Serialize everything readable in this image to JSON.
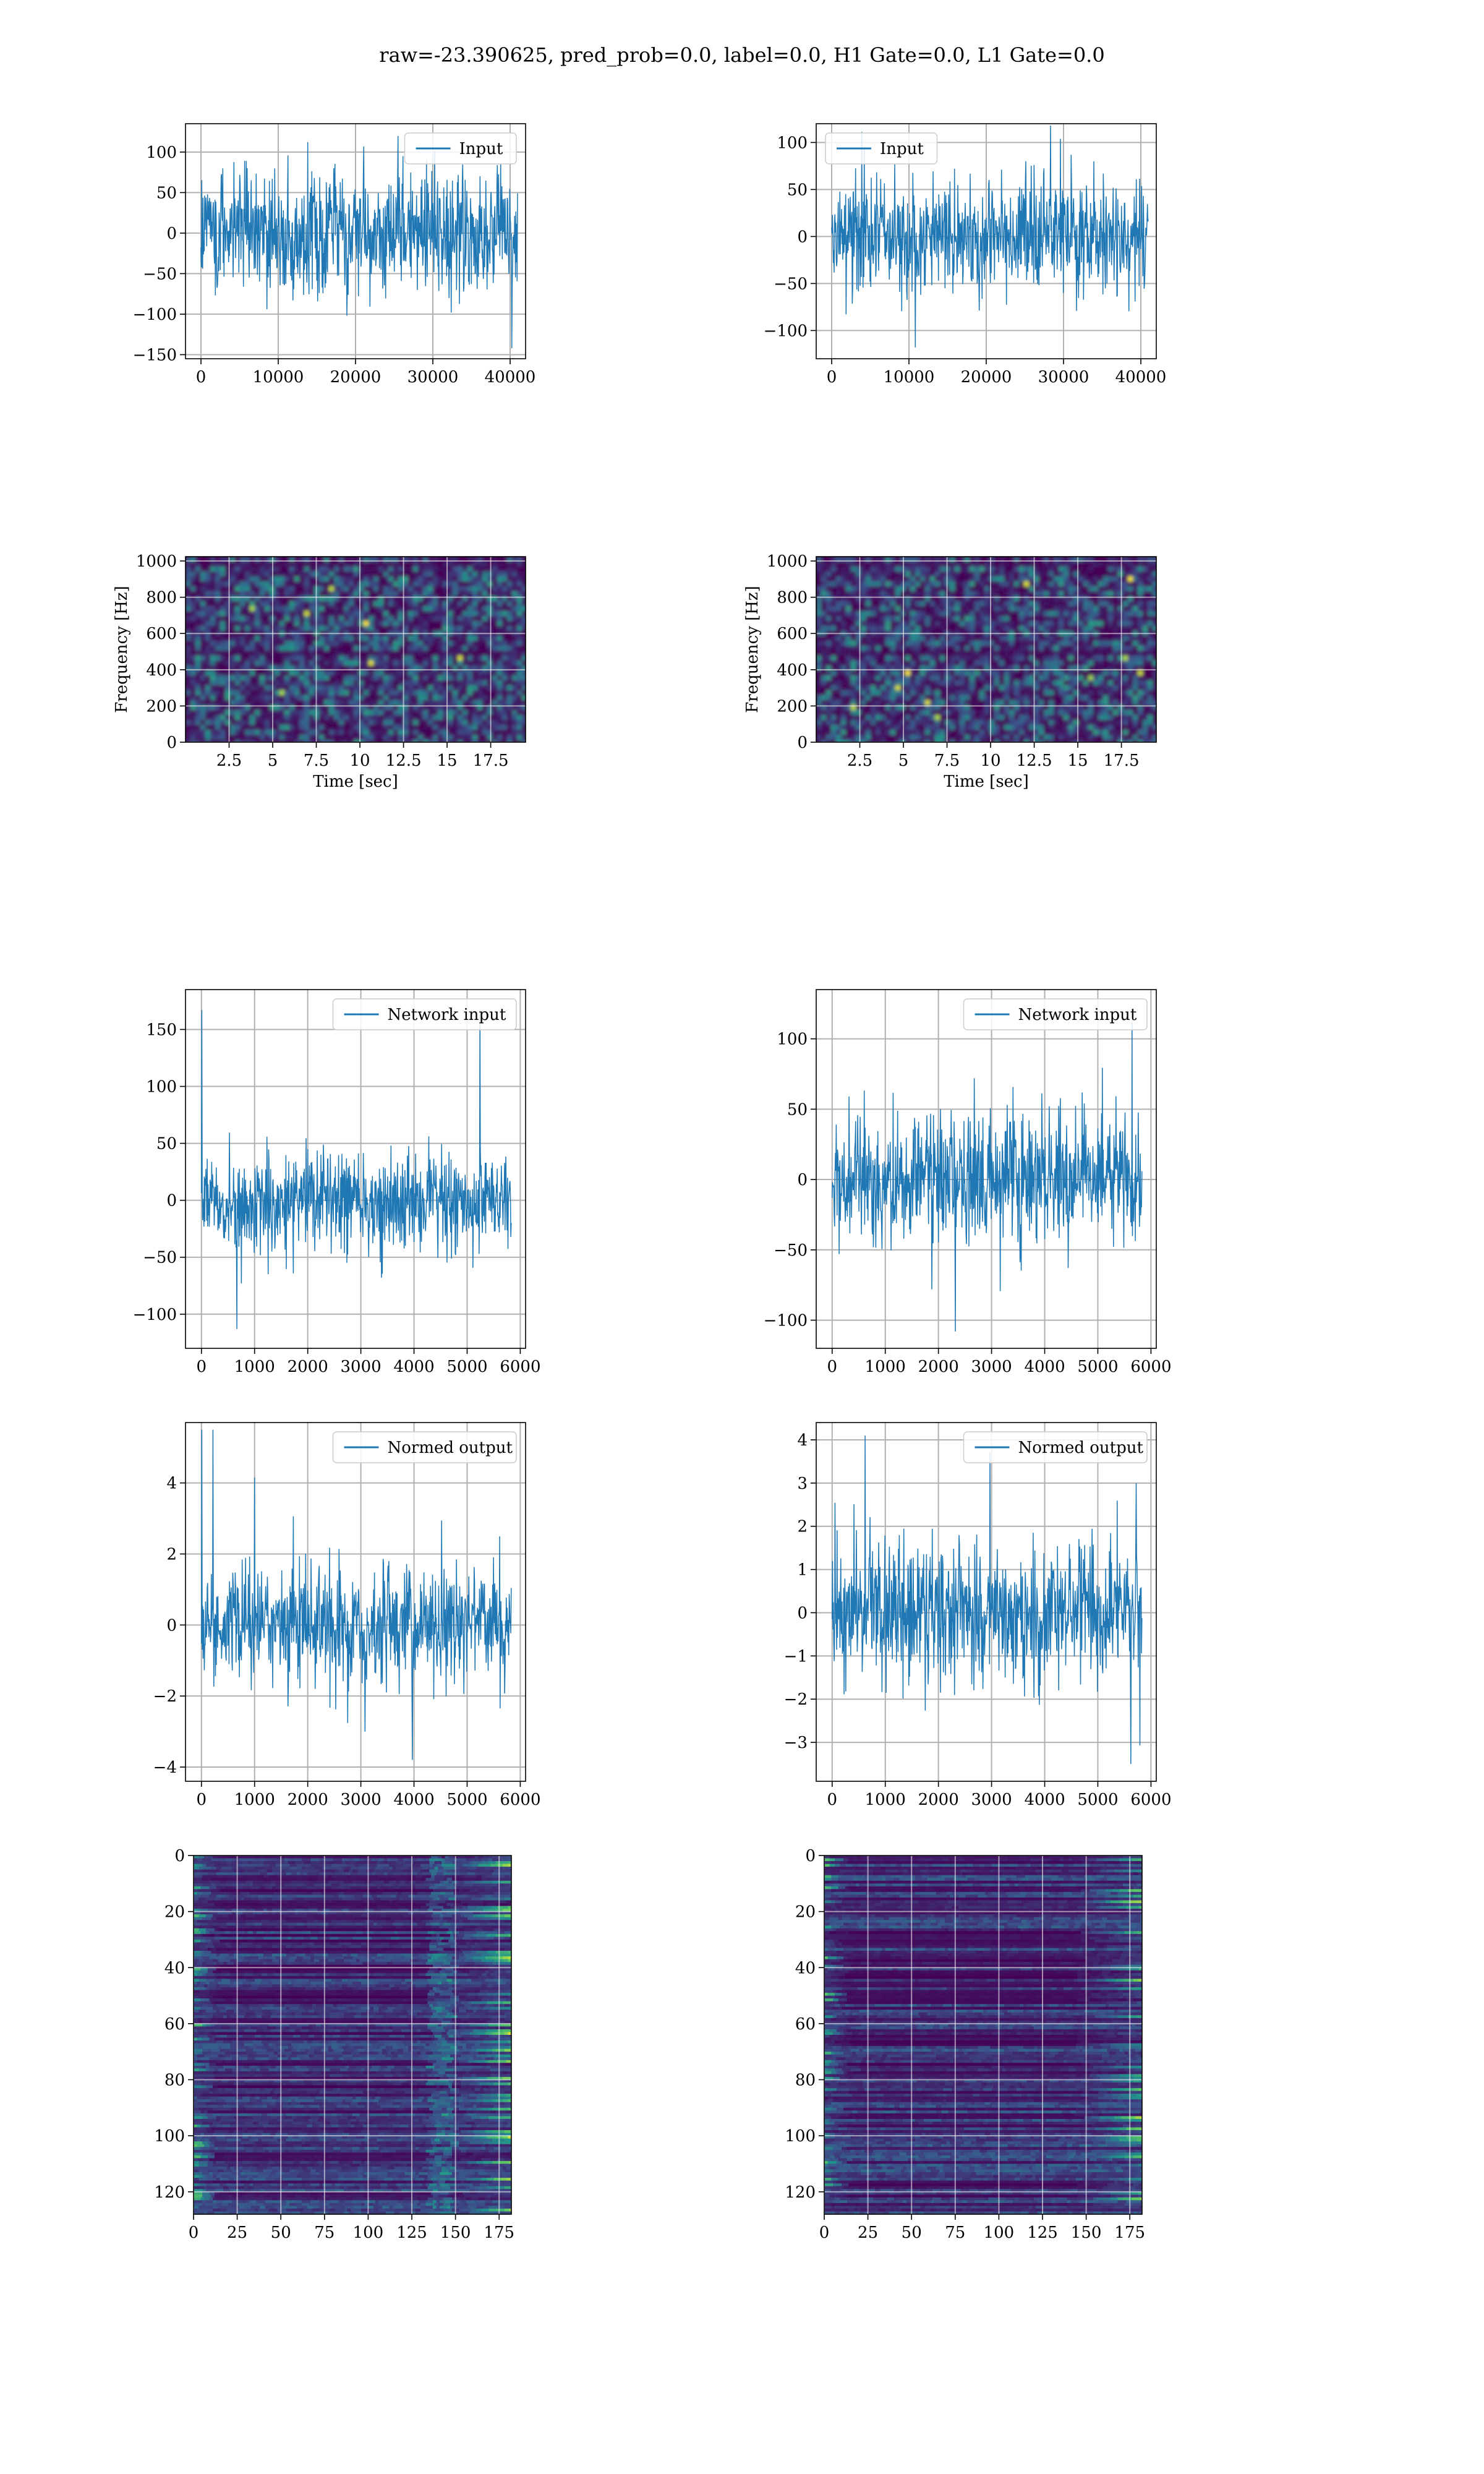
{
  "title": "raw=-23.390625, pred_prob=0.0, label=0.0, H1 Gate=0.0, L1 Gate=0.0",
  "colors": {
    "line": "#1f77b4",
    "grid": "#b0b0b0",
    "viridis_low": "#440154",
    "viridis_mid": "#21918c",
    "viridis_high": "#fde725"
  },
  "chart_data": [
    {
      "id": "input-h1",
      "type": "line",
      "legend": "Input",
      "legend_loc": "upper right",
      "xlim": [
        -2000,
        42000
      ],
      "ylim": [
        -155,
        135
      ],
      "xticks": [
        0,
        10000,
        20000,
        30000,
        40000
      ],
      "yticks": [
        -150,
        -100,
        -50,
        0,
        50,
        100
      ],
      "x_range": [
        0,
        40960
      ],
      "envelope": 70,
      "peaks": [
        120,
        -142
      ],
      "xlabel": "",
      "ylabel": "",
      "grid": true
    },
    {
      "id": "input-l1",
      "type": "line",
      "legend": "Input",
      "legend_loc": "upper left",
      "xlim": [
        -2000,
        42000
      ],
      "ylim": [
        -130,
        120
      ],
      "xticks": [
        0,
        10000,
        20000,
        30000,
        40000
      ],
      "yticks": [
        -100,
        -50,
        0,
        50,
        100
      ],
      "x_range": [
        0,
        40960
      ],
      "envelope": 55,
      "peaks": [
        118,
        -118
      ],
      "xlabel": "",
      "ylabel": "",
      "grid": true
    },
    {
      "id": "spec-h1",
      "type": "heatmap",
      "cmap": "viridis",
      "xlim": [
        0,
        19.5
      ],
      "ylim": [
        0,
        1024
      ],
      "xticks": [
        2.5,
        5.0,
        7.5,
        10.0,
        12.5,
        15.0,
        17.5
      ],
      "yticks": [
        0,
        200,
        400,
        600,
        800,
        1000
      ],
      "xlabel": "Time [sec]",
      "ylabel": "Frequency [Hz]",
      "grid": true
    },
    {
      "id": "spec-l1",
      "type": "heatmap",
      "cmap": "viridis",
      "xlim": [
        0,
        19.5
      ],
      "ylim": [
        0,
        1024
      ],
      "xticks": [
        2.5,
        5.0,
        7.5,
        10.0,
        12.5,
        15.0,
        17.5
      ],
      "yticks": [
        0,
        200,
        400,
        600,
        800,
        1000
      ],
      "xlabel": "Time [sec]",
      "ylabel": "Frequency [Hz]",
      "grid": true
    },
    {
      "id": "netin-h1",
      "type": "line",
      "legend": "Network input",
      "legend_loc": "upper right",
      "xlim": [
        -300,
        6100
      ],
      "ylim": [
        -130,
        185
      ],
      "xticks": [
        0,
        1000,
        2000,
        3000,
        4000,
        5000,
        6000
      ],
      "yticks": [
        -100,
        -50,
        0,
        50,
        100,
        150
      ],
      "x_range": [
        0,
        5830
      ],
      "envelope": 42,
      "peaks": [
        167,
        -113
      ],
      "xlabel": "",
      "ylabel": "",
      "grid": true
    },
    {
      "id": "netin-l1",
      "type": "line",
      "legend": "Network input",
      "legend_loc": "upper right",
      "xlim": [
        -300,
        6100
      ],
      "ylim": [
        -120,
        135
      ],
      "xticks": [
        0,
        1000,
        2000,
        3000,
        4000,
        5000,
        6000
      ],
      "yticks": [
        -100,
        -50,
        0,
        50,
        100
      ],
      "x_range": [
        0,
        5830
      ],
      "envelope": 45,
      "peaks": [
        112,
        -108
      ],
      "xlabel": "",
      "ylabel": "",
      "grid": true
    },
    {
      "id": "norm-h1",
      "type": "line",
      "legend": "Normed output",
      "legend_loc": "upper right",
      "xlim": [
        -300,
        6100
      ],
      "ylim": [
        -4.4,
        5.7
      ],
      "xticks": [
        0,
        1000,
        2000,
        3000,
        4000,
        5000,
        6000
      ],
      "yticks": [
        -4,
        -2,
        0,
        2,
        4
      ],
      "x_range": [
        0,
        5830
      ],
      "envelope": 1.5,
      "peaks": [
        5.5,
        -3.8
      ],
      "xlabel": "",
      "ylabel": "",
      "grid": true
    },
    {
      "id": "norm-l1",
      "type": "line",
      "legend": "Normed output",
      "legend_loc": "upper right",
      "xlim": [
        -300,
        6100
      ],
      "ylim": [
        -3.9,
        4.4
      ],
      "xticks": [
        0,
        1000,
        2000,
        3000,
        4000,
        5000,
        6000
      ],
      "yticks": [
        -3,
        -2,
        -1,
        0,
        1,
        2,
        3,
        4
      ],
      "x_range": [
        0,
        5830
      ],
      "envelope": 1.5,
      "peaks": [
        4.1,
        -3.5
      ],
      "xlabel": "",
      "ylabel": "",
      "grid": true
    },
    {
      "id": "feat-h1",
      "type": "heatmap",
      "cmap": "viridis",
      "xlim": [
        0,
        182
      ],
      "ylim": [
        128,
        0
      ],
      "xticks": [
        0,
        25,
        50,
        75,
        100,
        125,
        150,
        175
      ],
      "yticks": [
        0,
        20,
        40,
        60,
        80,
        100,
        120
      ],
      "xlabel": "",
      "ylabel": "",
      "grid": true
    },
    {
      "id": "feat-l1",
      "type": "heatmap",
      "cmap": "viridis",
      "xlim": [
        0,
        182
      ],
      "ylim": [
        128,
        0
      ],
      "xticks": [
        0,
        25,
        50,
        75,
        100,
        125,
        150,
        175
      ],
      "yticks": [
        0,
        20,
        40,
        60,
        80,
        100,
        120
      ],
      "xlabel": "",
      "ylabel": "",
      "grid": true
    }
  ]
}
